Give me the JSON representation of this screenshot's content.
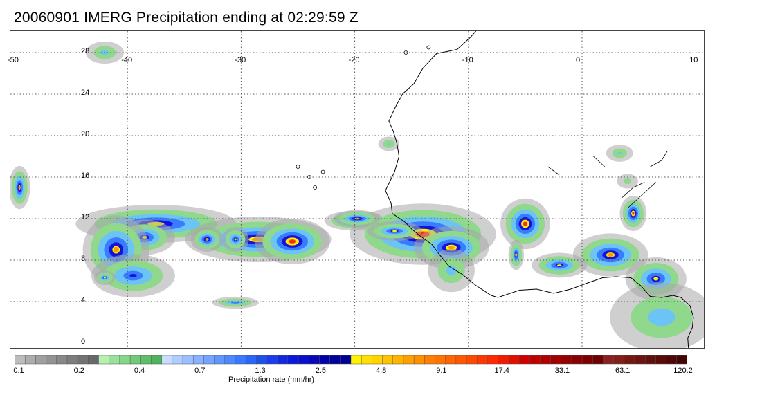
{
  "title": "20060901 IMERG Precipitation ending at 02:29:59 Z",
  "map": {
    "lon_range": [
      -50,
      10
    ],
    "lat_range": [
      -1,
      30
    ],
    "lon_labels": [
      "-50",
      "-40",
      "-30",
      "-20",
      "-10",
      "0",
      "10"
    ],
    "lat_labels": [
      "28",
      "24",
      "20",
      "16",
      "12",
      "8",
      "4",
      "0"
    ],
    "grid": "dotted",
    "coastline_color": "#000000",
    "precip_cells": [
      {
        "lon": -37.5,
        "lat": 11.5,
        "rx": 5.5,
        "ry": 1.3,
        "peak": 15
      },
      {
        "lon": -38.5,
        "lat": 10.2,
        "rx": 2.0,
        "ry": 1.2,
        "peak": 9
      },
      {
        "lon": -41.0,
        "lat": 9.0,
        "rx": 2.2,
        "ry": 2.5,
        "peak": 17
      },
      {
        "lon": -39.5,
        "lat": 6.5,
        "rx": 2.8,
        "ry": 1.5,
        "peak": 5
      },
      {
        "lon": -28.5,
        "lat": 10.0,
        "rx": 5.0,
        "ry": 1.6,
        "peak": 20
      },
      {
        "lon": -25.5,
        "lat": 9.8,
        "rx": 2.5,
        "ry": 1.6,
        "peak": 40
      },
      {
        "lon": -20.0,
        "lat": 11.8,
        "rx": 2.0,
        "ry": 0.6,
        "peak": 25
      },
      {
        "lon": -14.0,
        "lat": 10.5,
        "rx": 5.0,
        "ry": 2.2,
        "peak": 40
      },
      {
        "lon": -11.5,
        "lat": 9.2,
        "rx": 2.5,
        "ry": 1.5,
        "peak": 25
      },
      {
        "lon": -16.5,
        "lat": 10.8,
        "rx": 1.8,
        "ry": 0.6,
        "peak": 9
      },
      {
        "lon": -11.5,
        "lat": 7.0,
        "rx": 1.5,
        "ry": 1.5,
        "peak": 1.3
      },
      {
        "lon": -5.0,
        "lat": 11.5,
        "rx": 1.6,
        "ry": 1.8,
        "peak": 33
      },
      {
        "lon": -5.8,
        "lat": 8.5,
        "rx": 0.4,
        "ry": 1.0,
        "peak": 17
      },
      {
        "lon": 4.5,
        "lat": 12.5,
        "rx": 0.8,
        "ry": 1.2,
        "peak": 33
      },
      {
        "lon": 2.5,
        "lat": 8.5,
        "rx": 2.5,
        "ry": 1.5,
        "peak": 17
      },
      {
        "lon": -2.0,
        "lat": 7.5,
        "rx": 1.8,
        "ry": 0.8,
        "peak": 9
      },
      {
        "lon": 6.5,
        "lat": 6.2,
        "rx": 2.0,
        "ry": 1.5,
        "peak": 9
      },
      {
        "lon": 7.0,
        "lat": 2.5,
        "rx": 3.5,
        "ry": 2.5,
        "peak": 1.5
      },
      {
        "lon": -49.5,
        "lat": 15.0,
        "rx": 0.6,
        "ry": 1.5,
        "peak": 17
      },
      {
        "lon": -42.0,
        "lat": 28.0,
        "rx": 1.2,
        "ry": 0.7,
        "peak": 1.3
      },
      {
        "lon": -30.5,
        "lat": 3.9,
        "rx": 1.5,
        "ry": 0.3,
        "peak": 4
      },
      {
        "lon": -19.8,
        "lat": 12.0,
        "rx": 1.5,
        "ry": 0.5,
        "peak": 20
      },
      {
        "lon": -30.5,
        "lat": 10.0,
        "rx": 0.8,
        "ry": 0.8,
        "peak": 9
      },
      {
        "lon": -33.0,
        "lat": 10.0,
        "rx": 1.0,
        "ry": 0.8,
        "peak": 17
      },
      {
        "lon": -42.0,
        "lat": 6.3,
        "rx": 0.6,
        "ry": 0.4,
        "peak": 9
      },
      {
        "lon": -17.0,
        "lat": 19.2,
        "rx": 0.6,
        "ry": 0.4,
        "peak": 1
      },
      {
        "lon": 3.3,
        "lat": 18.3,
        "rx": 0.8,
        "ry": 0.5,
        "peak": 1
      },
      {
        "lon": 4.0,
        "lat": 15.6,
        "rx": 0.6,
        "ry": 0.4,
        "peak": 0.4
      }
    ]
  },
  "colorbar": {
    "title": "Precipitation rate (mm/hr)",
    "colors": [
      "#bdbdbd",
      "#adadad",
      "#a0a0a0",
      "#939393",
      "#888888",
      "#7d7d7d",
      "#727272",
      "#686868",
      "#b8f0b0",
      "#99e29b",
      "#84d688",
      "#70cb78",
      "#5fbf68",
      "#4fb45b",
      "#c8ddff",
      "#b0cdff",
      "#9cc0ff",
      "#88b2ff",
      "#74a4ff",
      "#6096ff",
      "#4c88ff",
      "#3a78ff",
      "#2a66f4",
      "#1c52e8",
      "#1a3cf0",
      "#1228e0",
      "#0a18d8",
      "#0810c8",
      "#0808b8",
      "#0000a8",
      "#00009a",
      "#000090",
      "#fff200",
      "#ffe000",
      "#ffd400",
      "#ffc400",
      "#ffb400",
      "#ffa000",
      "#ff9000",
      "#ff8000",
      "#ff7400",
      "#ff6400",
      "#ff5800",
      "#ff4800",
      "#ff3800",
      "#ff2a00",
      "#f01c00",
      "#e01000",
      "#d00000",
      "#c00000",
      "#b00000",
      "#a20000",
      "#940000",
      "#880000",
      "#7c0000",
      "#700000",
      "#8a2020",
      "#802018",
      "#761810",
      "#6c1410",
      "#62100c",
      "#580c08",
      "#4e0808",
      "#440404"
    ],
    "labels": [
      "0.1",
      "0.2",
      "0.4",
      "0.7",
      "1.3",
      "2.5",
      "4.8",
      "9.1",
      "17.4",
      "33.1",
      "63.1",
      "120.2"
    ]
  }
}
